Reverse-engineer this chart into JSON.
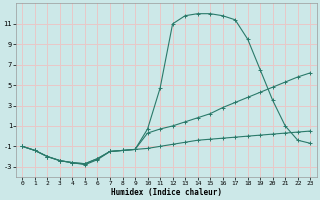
{
  "xlabel": "Humidex (Indice chaleur)",
  "bg_color": "#cce8e8",
  "grid_color": "#e8c8c8",
  "line_color": "#2a7a6a",
  "series": {
    "main": {
      "x": [
        0,
        1,
        2,
        3,
        4,
        5,
        6,
        7,
        8,
        9,
        10,
        11,
        12,
        13,
        14,
        15,
        16,
        17,
        18,
        19,
        20,
        21,
        22,
        23
      ],
      "y": [
        -1.0,
        -1.4,
        -2.0,
        -2.4,
        -2.6,
        -2.8,
        -2.3,
        -1.5,
        -1.4,
        -1.3,
        0.7,
        4.7,
        11.0,
        11.8,
        12.0,
        12.0,
        11.8,
        11.4,
        9.5,
        6.5,
        3.5,
        1.0,
        -0.4,
        -0.7
      ]
    },
    "mid": {
      "x": [
        0,
        1,
        2,
        3,
        4,
        5,
        6,
        7,
        8,
        9,
        10,
        11,
        12,
        13,
        14,
        15,
        16,
        17,
        18,
        19,
        20,
        21,
        22,
        23
      ],
      "y": [
        -1.0,
        -1.4,
        -2.0,
        -2.4,
        -2.6,
        -2.7,
        -2.2,
        -1.5,
        -1.4,
        -1.3,
        0.3,
        0.7,
        1.0,
        1.4,
        1.8,
        2.2,
        2.8,
        3.3,
        3.8,
        4.3,
        4.8,
        5.3,
        5.8,
        6.2
      ]
    },
    "low": {
      "x": [
        0,
        1,
        2,
        3,
        4,
        5,
        6,
        7,
        8,
        9,
        10,
        11,
        12,
        13,
        14,
        15,
        16,
        17,
        18,
        19,
        20,
        21,
        22,
        23
      ],
      "y": [
        -1.0,
        -1.4,
        -2.0,
        -2.4,
        -2.6,
        -2.7,
        -2.2,
        -1.5,
        -1.4,
        -1.3,
        -1.2,
        -1.0,
        -0.8,
        -0.6,
        -0.4,
        -0.3,
        -0.2,
        -0.1,
        0.0,
        0.1,
        0.2,
        0.3,
        0.4,
        0.5
      ]
    }
  },
  "xlim": [
    -0.5,
    23.5
  ],
  "ylim": [
    -4.0,
    13.0
  ],
  "yticks": [
    -3,
    -1,
    1,
    3,
    5,
    7,
    9,
    11
  ],
  "xticks": [
    0,
    1,
    2,
    3,
    4,
    5,
    6,
    7,
    8,
    9,
    10,
    11,
    12,
    13,
    14,
    15,
    16,
    17,
    18,
    19,
    20,
    21,
    22,
    23
  ]
}
